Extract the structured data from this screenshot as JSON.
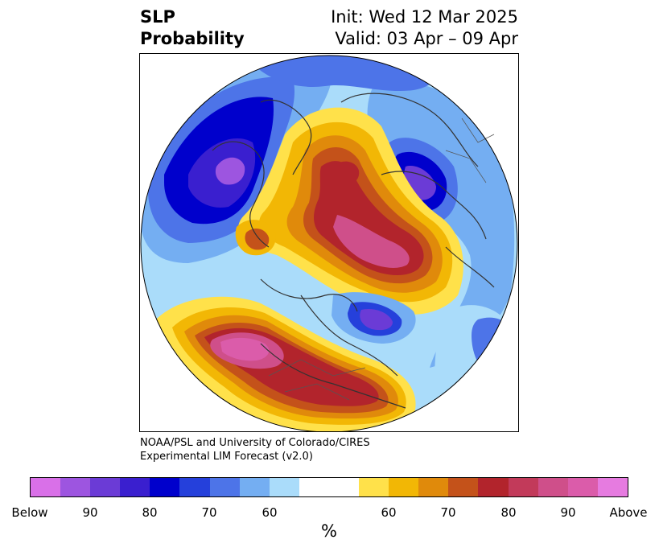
{
  "title": {
    "left_line1": "SLP",
    "left_line2": "Probability",
    "right_line1": "Init: Wed 12 Mar 2025",
    "right_line2": "Valid: 03 Apr – 09 Apr"
  },
  "credit": {
    "line1": "NOAA/PSL and University of Colorado/CIRES",
    "line2": "Experimental LIM Forecast (v2.0)"
  },
  "colorbar": {
    "unit": "%",
    "colors": [
      "#d970e8",
      "#9d55e0",
      "#6b3bd6",
      "#3a1fcf",
      "#0000cc",
      "#2540db",
      "#4d74e8",
      "#74aef2",
      "#aadcfa",
      "#ffffff",
      "#ffffff",
      "#ffe14a",
      "#f2b705",
      "#e08a0b",
      "#c4521a",
      "#b2242c",
      "#c23a5a",
      "#cf4f8a",
      "#db5caa",
      "#e67be0"
    ],
    "labels": [
      "Below",
      "90",
      "80",
      "70",
      "60",
      "60",
      "70",
      "80",
      "90",
      "Above"
    ]
  },
  "map": {
    "below_colors": {
      "b60": "#aadcfa",
      "b70": "#74aef2",
      "b80": "#4d74e8",
      "b85": "#2540db",
      "b90": "#0000cc",
      "b95": "#3a1fcf",
      "b97": "#6b3bd6",
      "b99": "#9d55e0"
    },
    "above_colors": {
      "a55": "#ffe14a",
      "a60": "#f2b705",
      "a65": "#e08a0b",
      "a70": "#c4521a",
      "a80": "#b2242c",
      "a85": "#c23a5a",
      "a90": "#cf4f8a",
      "a95": "#db5caa"
    }
  }
}
